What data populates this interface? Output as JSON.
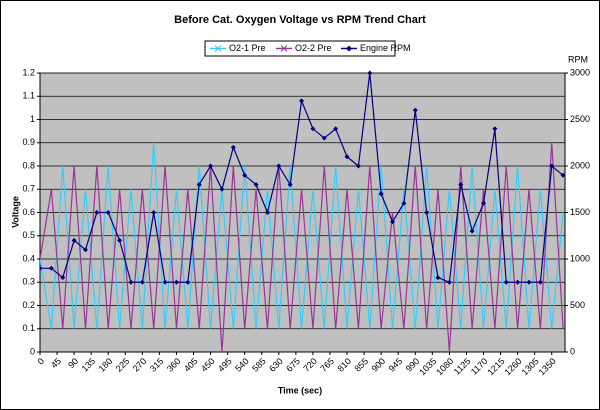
{
  "chart_data": {
    "type": "line",
    "title": "Before Cat. Oxygen Voltage vs RPM Trend Chart",
    "x_label": "Time (sec)",
    "y_label": "Voltage",
    "y2_label": "RPM",
    "x": [
      0,
      30,
      60,
      90,
      120,
      150,
      180,
      210,
      240,
      270,
      300,
      330,
      360,
      390,
      420,
      450,
      480,
      510,
      540,
      570,
      600,
      630,
      660,
      690,
      720,
      750,
      780,
      810,
      840,
      870,
      900,
      930,
      960,
      990,
      1020,
      1050,
      1080,
      1110,
      1140,
      1170,
      1200,
      1230,
      1260,
      1290,
      1320,
      1350,
      1380
    ],
    "xlim": [
      0,
      1385
    ],
    "xticks": [
      0,
      45,
      90,
      135,
      180,
      225,
      270,
      315,
      360,
      405,
      450,
      495,
      540,
      585,
      630,
      675,
      720,
      765,
      810,
      855,
      900,
      945,
      990,
      1035,
      1080,
      1125,
      1170,
      1215,
      1260,
      1305,
      1350
    ],
    "ylim": [
      0,
      1.2
    ],
    "yticks": [
      0,
      0.1,
      0.2,
      0.3,
      0.4,
      0.5,
      0.6,
      0.7,
      0.8,
      0.9,
      1,
      1.1,
      1.2
    ],
    "y2lim": [
      0,
      3000
    ],
    "y2ticks": [
      0,
      500,
      1000,
      1500,
      2000,
      2500,
      3000
    ],
    "grid": true,
    "legend": "top",
    "series": [
      {
        "name": "O2-1 Pre",
        "color": "#33ccff",
        "values": [
          0.4,
          0.1,
          0.8,
          0.1,
          0.7,
          0.1,
          0.8,
          0.1,
          0.7,
          0.1,
          0.9,
          0.1,
          0.7,
          0.1,
          0.8,
          0.1,
          0.7,
          0.1,
          0.8,
          0.1,
          0.7,
          0.1,
          0.8,
          0.1,
          0.7,
          0.1,
          0.8,
          0.1,
          0.7,
          0.1,
          0.8,
          0.1,
          0.7,
          0.1,
          0.8,
          0.1,
          0.7,
          0.1,
          0.8,
          0.1,
          0.7,
          0.1,
          0.8,
          0.1,
          0.7,
          0.1,
          0.6
        ]
      },
      {
        "name": "O2-2 Pre",
        "color": "#993399",
        "values": [
          0.4,
          0.7,
          0.1,
          0.8,
          0.1,
          0.8,
          0.1,
          0.7,
          0.1,
          0.7,
          0.1,
          0.8,
          0.1,
          0.7,
          0.1,
          0.8,
          0,
          0.8,
          0.1,
          0.7,
          0.1,
          0.8,
          0.1,
          0.7,
          0.1,
          0.8,
          0.1,
          0.7,
          0.1,
          0.8,
          0.1,
          0.6,
          0.1,
          0.8,
          0.1,
          0.7,
          0,
          0.8,
          0.1,
          0.7,
          0.1,
          0.8,
          0.1,
          0.7,
          0.1,
          0.9,
          0.1
        ]
      },
      {
        "name": "Engine RPM",
        "color": "#000080",
        "axis": "y2",
        "values": [
          900,
          900,
          800,
          1200,
          1100,
          1500,
          1500,
          1200,
          750,
          750,
          1500,
          750,
          750,
          750,
          1800,
          2000,
          1750,
          2200,
          1900,
          1800,
          1500,
          2000,
          1800,
          2700,
          2400,
          2300,
          2400,
          2100,
          2000,
          3000,
          1700,
          1400,
          1600,
          2600,
          1500,
          800,
          750,
          1800,
          1300,
          1600,
          2400,
          750,
          750,
          750,
          750,
          2000,
          1900
        ]
      }
    ]
  }
}
